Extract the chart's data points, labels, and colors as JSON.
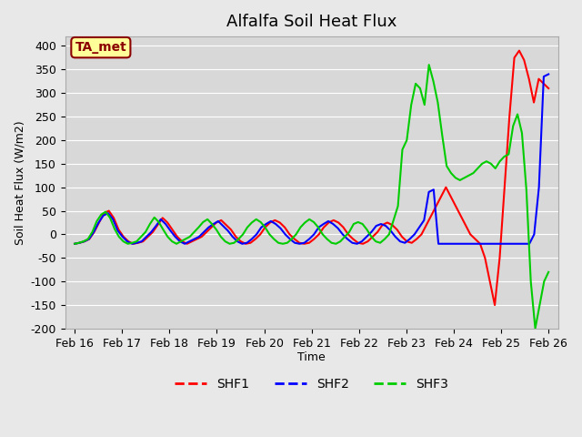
{
  "title": "Alfalfa Soil Heat Flux",
  "ylabel": "Soil Heat Flux (W/m2)",
  "xlabel": "Time",
  "ylim": [
    -200,
    420
  ],
  "yticks": [
    -200,
    -150,
    -100,
    -50,
    0,
    50,
    100,
    150,
    200,
    250,
    300,
    350,
    400
  ],
  "background_color": "#e8e8e8",
  "plot_bg_color": "#d8d8d8",
  "grid_color": "#ffffff",
  "annotation_text": "TA_met",
  "annotation_bg": "#ffff99",
  "annotation_border": "#8b0000",
  "line_colors": {
    "SHF1": "#ff0000",
    "SHF2": "#0000ff",
    "SHF3": "#00cc00"
  },
  "xtick_labels": [
    "Feb 16",
    "Feb 17",
    "Feb 18",
    "Feb 19",
    "Feb 20",
    "Feb 21",
    "Feb 22",
    "Feb 23",
    "Feb 24",
    "Feb 25",
    "Feb 26"
  ],
  "xtick_positions": [
    0,
    1,
    2,
    3,
    4,
    5,
    6,
    7,
    8,
    9,
    10
  ],
  "SHF1": [
    -20,
    -18,
    -15,
    -10,
    5,
    25,
    45,
    50,
    35,
    10,
    -5,
    -15,
    -20,
    -18,
    -15,
    -5,
    5,
    20,
    35,
    25,
    10,
    -5,
    -15,
    -20,
    -15,
    -10,
    -5,
    5,
    15,
    25,
    30,
    20,
    10,
    -5,
    -15,
    -20,
    -18,
    -10,
    0,
    15,
    25,
    30,
    25,
    15,
    0,
    -10,
    -18,
    -20,
    -18,
    -10,
    0,
    15,
    25,
    30,
    25,
    15,
    0,
    -10,
    -18,
    -20,
    -15,
    -5,
    5,
    20,
    25,
    20,
    10,
    -5,
    -15,
    -18,
    -10,
    0,
    20,
    40,
    60,
    80,
    100,
    80,
    60,
    40,
    20,
    0,
    -10,
    -20,
    -50,
    -100,
    -150,
    -50,
    100,
    250,
    375,
    390,
    370,
    330,
    280,
    330,
    320,
    310
  ],
  "SHF2": [
    -20,
    -18,
    -15,
    -10,
    5,
    25,
    40,
    45,
    32,
    8,
    -5,
    -15,
    -20,
    -18,
    -15,
    -5,
    5,
    18,
    32,
    22,
    8,
    -5,
    -15,
    -20,
    -15,
    -10,
    -5,
    5,
    15,
    22,
    28,
    18,
    8,
    -5,
    -15,
    -20,
    -18,
    -10,
    0,
    15,
    22,
    28,
    22,
    13,
    0,
    -10,
    -18,
    -20,
    -18,
    -10,
    0,
    15,
    22,
    28,
    22,
    13,
    0,
    -10,
    -18,
    -20,
    -15,
    -5,
    5,
    18,
    22,
    18,
    8,
    -5,
    -15,
    -18,
    -10,
    0,
    15,
    30,
    90,
    95,
    -20,
    -20,
    -20,
    -20,
    -20,
    -20,
    -20,
    -20,
    -20,
    -20,
    -20,
    -20,
    -20,
    -20,
    -20,
    -20,
    -20,
    -20,
    -20,
    -20,
    0,
    100,
    335,
    340
  ],
  "SHF3": [
    -20,
    -18,
    -15,
    -10,
    5,
    28,
    42,
    48,
    35,
    12,
    -5,
    -15,
    -20,
    -18,
    -15,
    -5,
    5,
    22,
    36,
    26,
    10,
    -5,
    -15,
    -20,
    -15,
    -10,
    -5,
    5,
    15,
    26,
    32,
    22,
    10,
    -5,
    -15,
    -20,
    -18,
    -10,
    0,
    15,
    25,
    32,
    26,
    15,
    0,
    -10,
    -18,
    -20,
    -18,
    -10,
    0,
    15,
    25,
    32,
    26,
    15,
    0,
    -10,
    -18,
    -20,
    -15,
    -5,
    5,
    22,
    26,
    22,
    10,
    -5,
    -15,
    -18,
    -10,
    0,
    30,
    60,
    180,
    200,
    275,
    320,
    310,
    275,
    360,
    325,
    280,
    210,
    145,
    130,
    120,
    115,
    120,
    125,
    130,
    140,
    150,
    155,
    150,
    140,
    155,
    165,
    170,
    230,
    255,
    215,
    95,
    -100,
    -200,
    -150,
    -100,
    -80
  ]
}
